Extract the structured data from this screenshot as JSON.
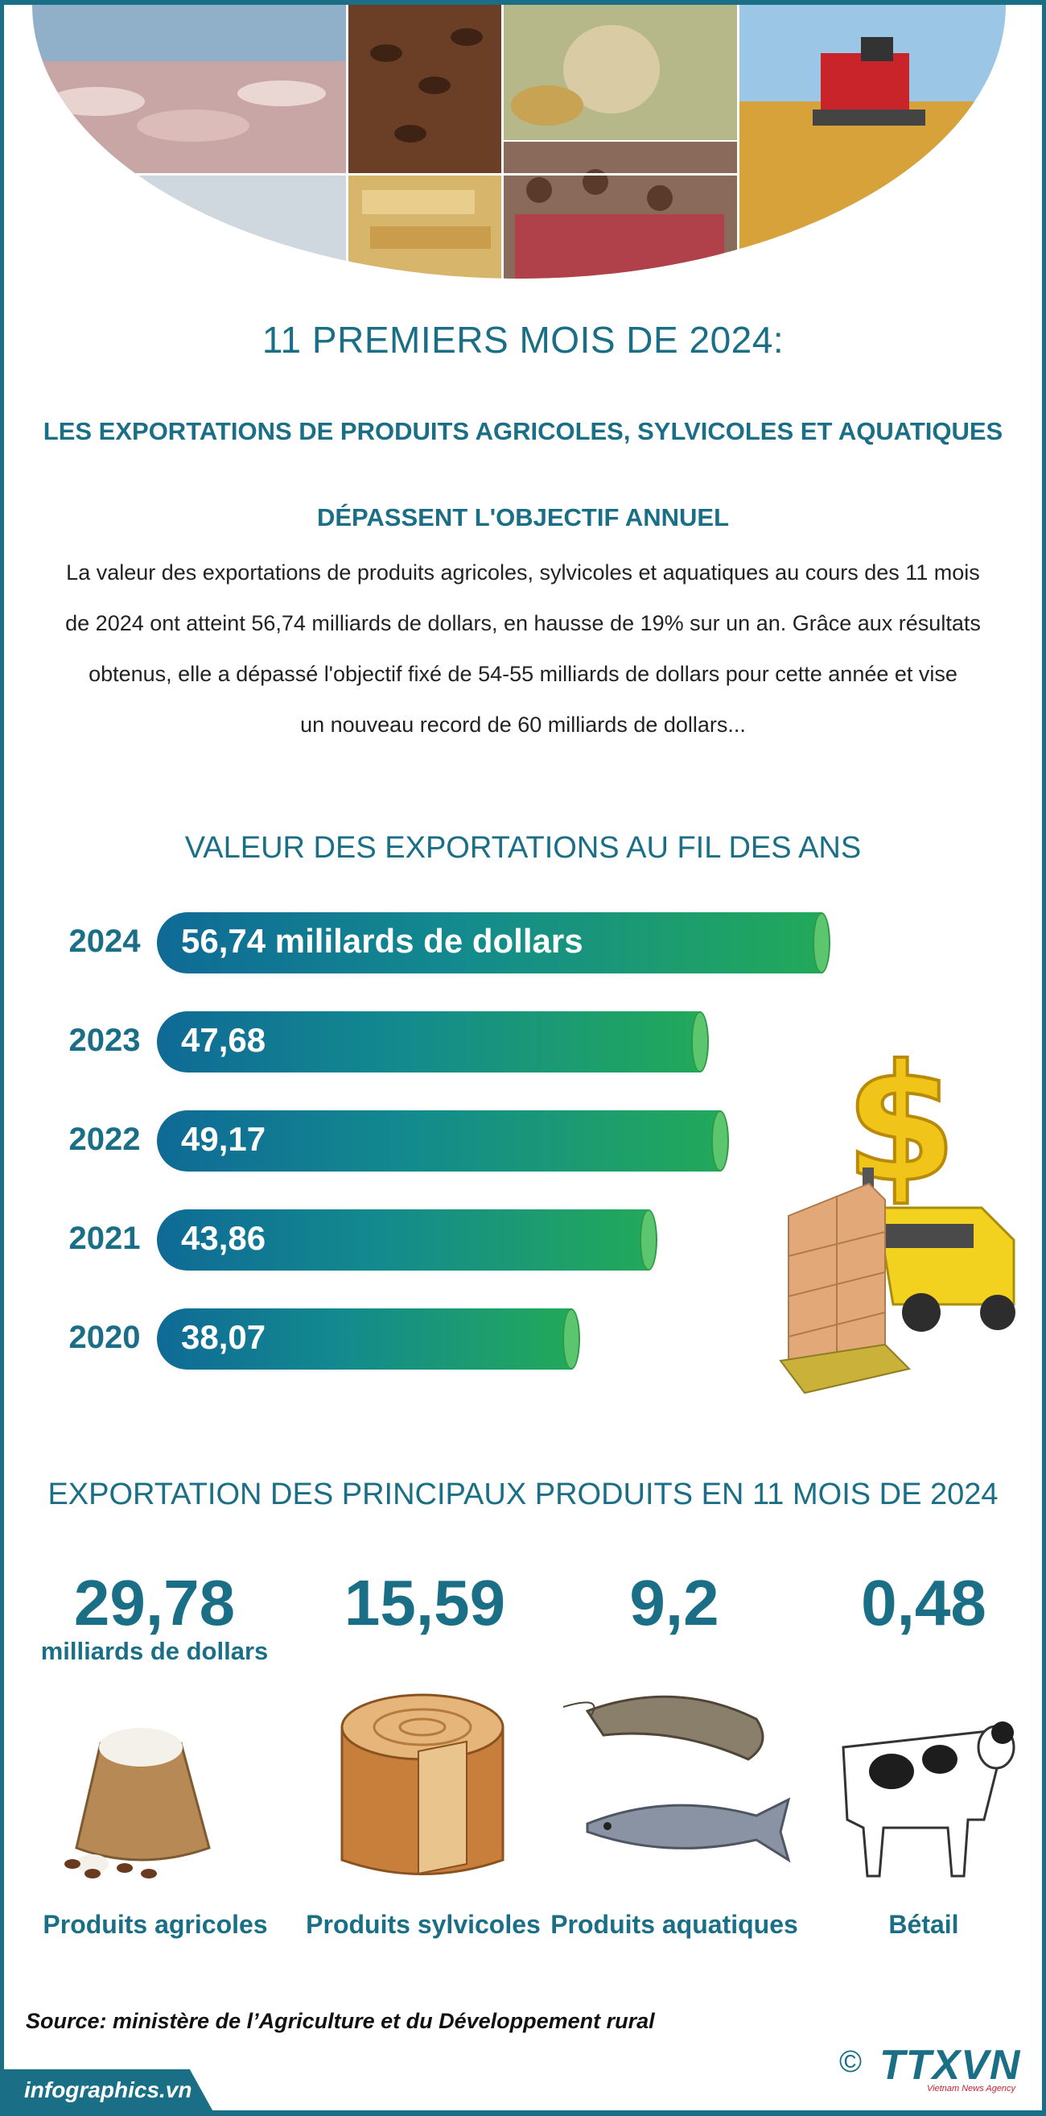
{
  "header": {
    "title": "11 PREMIERS MOIS DE 2024:",
    "subtitle_line1": "LES EXPORTATIONS DE PRODUITS AGRICOLES, SYLVICOLES ET AQUATIQUES",
    "subtitle_line2": "DÉPASSENT L'OBJECTIF ANNUEL"
  },
  "intro": {
    "line1": "La valeur des exportations de produits agricoles, sylvicoles et aquatiques au cours des 11 mois",
    "line2": "de 2024 ont atteint 56,74 milliards de dollars, en hausse de 19% sur un an. Grâce aux résultats",
    "line3": "obtenus, elle a dépassé l'objectif fixé de 54-55 milliards de dollars pour cette année et vise",
    "line4": "un nouveau record de 60 milliards de dollars..."
  },
  "chart_data": {
    "type": "bar",
    "title": "VALEUR DES EXPORTATIONS AU FIL DES ANS",
    "categories": [
      "2024",
      "2023",
      "2022",
      "2021",
      "2020"
    ],
    "values": [
      56.74,
      47.68,
      49.17,
      43.86,
      38.07
    ],
    "value_labels": [
      "56,74 mililards de dollars",
      "47,68",
      "49,17",
      "43,86",
      "38,07"
    ],
    "orientation": "horizontal",
    "xlim": [
      0,
      60
    ]
  },
  "products": {
    "title": "EXPORTATION DES PRINCIPAUX PRODUITS EN 11 MOIS DE 2024",
    "unit": "milliards de dollars",
    "items": [
      {
        "value": "29,78",
        "name": "Produits agricoles"
      },
      {
        "value": "15,59",
        "name": "Produits sylvicoles"
      },
      {
        "value": "9,2",
        "name": "Produits aquatiques"
      },
      {
        "value": "0,48",
        "name": "Bétail"
      }
    ]
  },
  "footer": {
    "source": "Source: ministère de l’Agriculture et du Développement rural",
    "site": "infographics.vn",
    "copyright": "©",
    "logo": "TTXVN",
    "logo_sub": "Vietnam News Agency"
  },
  "colors": {
    "accent": "#1a6f86",
    "bar_start": "#0f6a96",
    "bar_end": "#22a95a"
  }
}
